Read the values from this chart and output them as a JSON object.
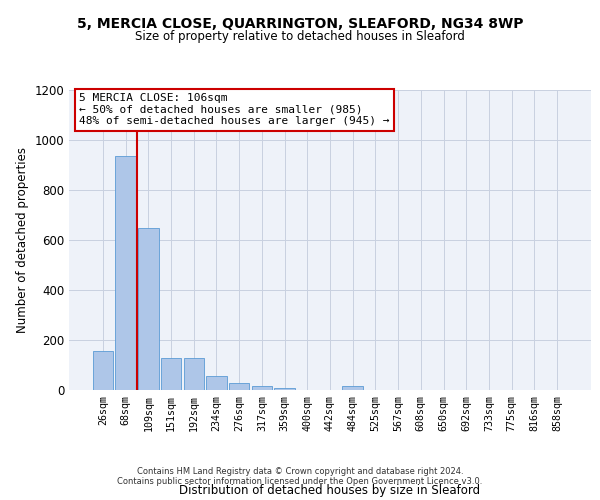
{
  "title1": "5, MERCIA CLOSE, QUARRINGTON, SLEAFORD, NG34 8WP",
  "title2": "Size of property relative to detached houses in Sleaford",
  "xlabel": "Distribution of detached houses by size in Sleaford",
  "ylabel": "Number of detached properties",
  "bar_labels": [
    "26sqm",
    "68sqm",
    "109sqm",
    "151sqm",
    "192sqm",
    "234sqm",
    "276sqm",
    "317sqm",
    "359sqm",
    "400sqm",
    "442sqm",
    "484sqm",
    "525sqm",
    "567sqm",
    "608sqm",
    "650sqm",
    "692sqm",
    "733sqm",
    "775sqm",
    "816sqm",
    "858sqm"
  ],
  "bar_values": [
    155,
    935,
    650,
    130,
    130,
    55,
    30,
    15,
    10,
    0,
    0,
    15,
    0,
    0,
    0,
    0,
    0,
    0,
    0,
    0,
    0
  ],
  "bar_color": "#aec6e8",
  "bar_edgecolor": "#5b9bd5",
  "ylim": [
    0,
    1200
  ],
  "yticks": [
    0,
    200,
    400,
    600,
    800,
    1000,
    1200
  ],
  "vline_x": 1.5,
  "annotation_text": "5 MERCIA CLOSE: 106sqm\n← 50% of detached houses are smaller (985)\n48% of semi-detached houses are larger (945) →",
  "annotation_box_edgecolor": "#cc0000",
  "vline_color": "#cc0000",
  "footer1": "Contains HM Land Registry data © Crown copyright and database right 2024.",
  "footer2": "Contains public sector information licensed under the Open Government Licence v3.0.",
  "bg_color": "#eef2f9",
  "grid_color": "#c8d0e0"
}
